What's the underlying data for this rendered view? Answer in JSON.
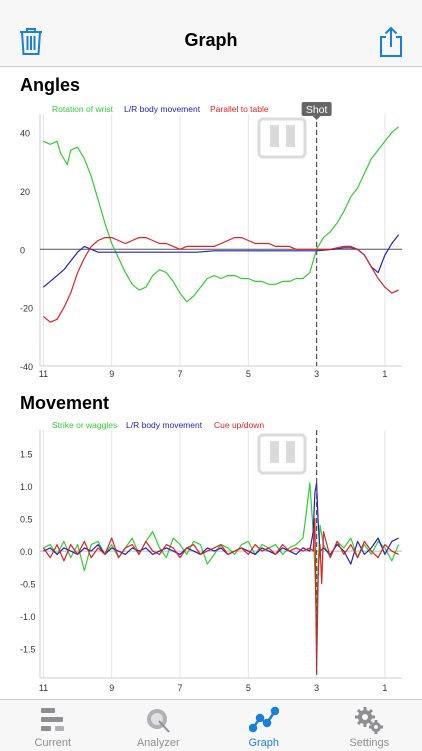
{
  "app": {
    "title": "Graph",
    "accent_color": "#1a7fd8",
    "icons": {
      "left": "trash-icon",
      "right": "share-icon"
    }
  },
  "tabs": [
    {
      "label": "Current",
      "icon": "timeline-icon",
      "active": false
    },
    {
      "label": "Analyzer",
      "icon": "analyzer-icon",
      "active": false
    },
    {
      "label": "Graph",
      "icon": "graph-icon",
      "active": true
    },
    {
      "label": "Settings",
      "icon": "gears-icon",
      "active": false
    }
  ],
  "chart_data": [
    {
      "title": "Angles",
      "type": "line",
      "marker_label": "Shot",
      "marker_x": 3,
      "x_ticks": [
        "11",
        "9",
        "7",
        "5",
        "3",
        "1"
      ],
      "y_ticks": [
        "40",
        "20",
        "0",
        "-20",
        "-40"
      ],
      "ylim": [
        -40,
        45
      ],
      "xlim": [
        11.1,
        0.5
      ],
      "series": [
        {
          "name": "Rotation of wrist",
          "color": "#33cc33",
          "x": [
            11,
            10.8,
            10.6,
            10.5,
            10.3,
            10.2,
            10.0,
            9.8,
            9.6,
            9.4,
            9.2,
            9.0,
            8.8,
            8.6,
            8.4,
            8.2,
            8.0,
            7.8,
            7.6,
            7.4,
            7.2,
            7.0,
            6.8,
            6.6,
            6.4,
            6.2,
            6.0,
            5.8,
            5.6,
            5.4,
            5.2,
            5.0,
            4.8,
            4.6,
            4.4,
            4.2,
            4.0,
            3.8,
            3.6,
            3.4,
            3.2,
            3.0,
            2.8,
            2.6,
            2.4,
            2.2,
            2.0,
            1.8,
            1.6,
            1.4,
            1.2,
            1.0,
            0.8,
            0.6
          ],
          "y": [
            37,
            36,
            37,
            33,
            29,
            34,
            35,
            31,
            25,
            17,
            9,
            2,
            -3,
            -8,
            -12,
            -14,
            -13,
            -9,
            -7,
            -8,
            -11,
            -15,
            -18,
            -16,
            -13,
            -10,
            -9,
            -10,
            -9,
            -9,
            -10,
            -10,
            -11,
            -11,
            -12,
            -12,
            -11,
            -11,
            -10,
            -10,
            -8,
            0,
            4,
            6,
            9,
            13,
            18,
            21,
            26,
            31,
            34,
            37,
            40,
            42
          ]
        },
        {
          "name": "L/R body movement",
          "color": "#2222bb",
          "x": [
            11,
            10.8,
            10.6,
            10.4,
            10.2,
            10.0,
            9.8,
            9.6,
            9.4,
            9.2,
            9.0,
            8.5,
            8.0,
            7.5,
            7.0,
            6.5,
            6.0,
            5.5,
            5.0,
            4.5,
            4.0,
            3.5,
            3.0,
            2.5,
            2.2,
            2.0,
            1.8,
            1.6,
            1.4,
            1.2,
            1.0,
            0.8,
            0.6
          ],
          "y": [
            -13,
            -11,
            -9,
            -7,
            -4,
            -1,
            1,
            0,
            -1,
            -1,
            -1,
            -1,
            -1,
            -1,
            -1,
            -1,
            -0.5,
            -0.5,
            -0.5,
            -0.5,
            -0.5,
            -0.5,
            -0.5,
            0,
            0.5,
            0.5,
            0,
            -2,
            -6,
            -8,
            -2,
            2,
            5
          ]
        },
        {
          "name": "Parallel to table",
          "color": "#dd2222",
          "x": [
            11,
            10.8,
            10.6,
            10.4,
            10.2,
            10.0,
            9.8,
            9.6,
            9.4,
            9.2,
            9.0,
            8.8,
            8.6,
            8.4,
            8.2,
            8.0,
            7.8,
            7.6,
            7.4,
            7.2,
            7.0,
            6.8,
            6.6,
            6.4,
            6.2,
            6.0,
            5.8,
            5.6,
            5.4,
            5.2,
            5.0,
            4.8,
            4.6,
            4.4,
            4.2,
            4.0,
            3.8,
            3.6,
            3.4,
            3.2,
            3.0,
            2.8,
            2.6,
            2.4,
            2.2,
            2.0,
            1.8,
            1.6,
            1.4,
            1.2,
            1.0,
            0.8,
            0.6
          ],
          "y": [
            -23,
            -25,
            -24,
            -20,
            -15,
            -8,
            -3,
            1,
            3,
            4,
            4,
            3,
            2,
            3,
            4,
            4,
            3,
            2,
            2,
            1,
            0,
            1,
            1,
            1,
            1,
            1,
            2,
            3,
            4,
            4,
            3,
            2,
            2,
            2,
            1,
            1,
            1,
            0,
            0,
            0,
            0,
            0,
            0,
            0.5,
            1,
            1,
            0,
            -2,
            -6,
            -10,
            -13,
            -15,
            -14
          ]
        }
      ]
    },
    {
      "title": "Movement",
      "type": "line",
      "marker_x": 3,
      "x_ticks": [
        "11",
        "9",
        "7",
        "5",
        "3",
        "1"
      ],
      "y_ticks": [
        "1.5",
        "1.0",
        "0.5",
        "0.0",
        "-0.5",
        "-1.0",
        "-1.5"
      ],
      "ylim": [
        -1.95,
        1.8
      ],
      "xlim": [
        11.1,
        0.5
      ],
      "series": [
        {
          "name": "Strike or waggles",
          "color": "#33cc33",
          "x": [
            11,
            10.8,
            10.6,
            10.4,
            10.2,
            10.0,
            9.8,
            9.6,
            9.4,
            9.2,
            9.0,
            8.8,
            8.6,
            8.4,
            8.2,
            8.0,
            7.8,
            7.6,
            7.4,
            7.2,
            7.0,
            6.8,
            6.6,
            6.4,
            6.2,
            6.0,
            5.8,
            5.6,
            5.4,
            5.2,
            5.0,
            4.8,
            4.6,
            4.4,
            4.2,
            4.0,
            3.8,
            3.6,
            3.4,
            3.3,
            3.2,
            3.1,
            3.05,
            3.0,
            2.95,
            2.9,
            2.8,
            2.6,
            2.4,
            2.2,
            2.0,
            1.8,
            1.6,
            1.4,
            1.2,
            1.0,
            0.8,
            0.6
          ],
          "y": [
            0.05,
            0.1,
            -0.05,
            0.15,
            -0.1,
            0.1,
            -0.3,
            0.1,
            0.15,
            -0.05,
            0.1,
            -0.1,
            0.05,
            0.2,
            -0.05,
            0.15,
            0.3,
            0.05,
            -0.1,
            0.2,
            0.1,
            -0.05,
            0.15,
            0.1,
            -0.2,
            -0.05,
            0.1,
            0.05,
            -0.05,
            0.1,
            0.15,
            -0.05,
            0.1,
            0.05,
            0.1,
            -0.05,
            0.05,
            0.1,
            0.2,
            0.6,
            1.05,
            0.3,
            -0.3,
            -1.1,
            -0.2,
            0.4,
            0.1,
            -0.1,
            0.15,
            0.05,
            0.2,
            -0.1,
            0.1,
            -0.05,
            0.15,
            0.05,
            -0.15,
            0.1
          ]
        },
        {
          "name": "L/R body movement",
          "color": "#2222bb",
          "x": [
            11,
            10.8,
            10.6,
            10.4,
            10.2,
            10.0,
            9.8,
            9.6,
            9.4,
            9.2,
            9.0,
            8.8,
            8.6,
            8.4,
            8.2,
            8.0,
            7.8,
            7.6,
            7.4,
            7.2,
            7.0,
            6.8,
            6.6,
            6.4,
            6.2,
            6.0,
            5.8,
            5.6,
            5.4,
            5.2,
            5.0,
            4.8,
            4.6,
            4.4,
            4.2,
            4.0,
            3.8,
            3.6,
            3.4,
            3.2,
            3.1,
            3.05,
            3.0,
            2.95,
            2.9,
            2.8,
            2.6,
            2.4,
            2.2,
            2.0,
            1.8,
            1.6,
            1.4,
            1.2,
            1.0,
            0.8,
            0.6
          ],
          "y": [
            0.0,
            0.05,
            -0.05,
            0.05,
            0.0,
            -0.05,
            0.05,
            0.0,
            0.1,
            -0.05,
            0.05,
            0.0,
            -0.05,
            0.05,
            0.0,
            0.05,
            -0.05,
            0.0,
            0.05,
            0.0,
            -0.05,
            0.05,
            0.0,
            -0.05,
            0.05,
            0.0,
            0.05,
            -0.05,
            0.0,
            0.05,
            0.0,
            -0.05,
            0.05,
            0.0,
            -0.05,
            0.05,
            0.0,
            -0.05,
            0.05,
            0.0,
            0.3,
            0.9,
            1.05,
            0.4,
            0.0,
            0.05,
            -0.05,
            0.1,
            0.0,
            -0.2,
            0.15,
            -0.05,
            0.05,
            0.2,
            -0.05,
            0.15,
            0.2
          ]
        },
        {
          "name": "Cue up/down",
          "color": "#dd2222",
          "x": [
            11,
            10.8,
            10.6,
            10.4,
            10.2,
            10.0,
            9.8,
            9.6,
            9.4,
            9.2,
            9.0,
            8.8,
            8.6,
            8.4,
            8.2,
            8.0,
            7.8,
            7.6,
            7.4,
            7.2,
            7.0,
            6.8,
            6.6,
            6.4,
            6.2,
            6.0,
            5.8,
            5.6,
            5.4,
            5.2,
            5.0,
            4.8,
            4.6,
            4.4,
            4.2,
            4.0,
            3.8,
            3.6,
            3.4,
            3.2,
            3.1,
            3.05,
            3.0,
            2.95,
            2.9,
            2.85,
            2.8,
            2.6,
            2.4,
            2.2,
            2.0,
            1.8,
            1.6,
            1.4,
            1.2,
            1.0,
            0.8,
            0.6
          ],
          "y": [
            0.05,
            -0.1,
            0.1,
            -0.15,
            0.1,
            -0.05,
            0.15,
            -0.1,
            0.05,
            -0.05,
            0.2,
            -0.1,
            0.05,
            0.1,
            -0.05,
            0.15,
            0.0,
            -0.05,
            0.1,
            0.05,
            -0.1,
            0.05,
            0.1,
            -0.05,
            0.0,
            0.05,
            0.1,
            -0.05,
            0.0,
            0.05,
            -0.05,
            0.1,
            0.0,
            0.05,
            -0.05,
            0.1,
            0.0,
            0.05,
            0.0,
            0.05,
            0.0,
            0.5,
            -1.85,
            -0.3,
            0.1,
            -0.5,
            0.3,
            -0.1,
            0.15,
            -0.05,
            0.1,
            -0.1,
            0.15,
            0.0,
            -0.1,
            0.1,
            0.0,
            -0.05
          ]
        }
      ]
    }
  ]
}
